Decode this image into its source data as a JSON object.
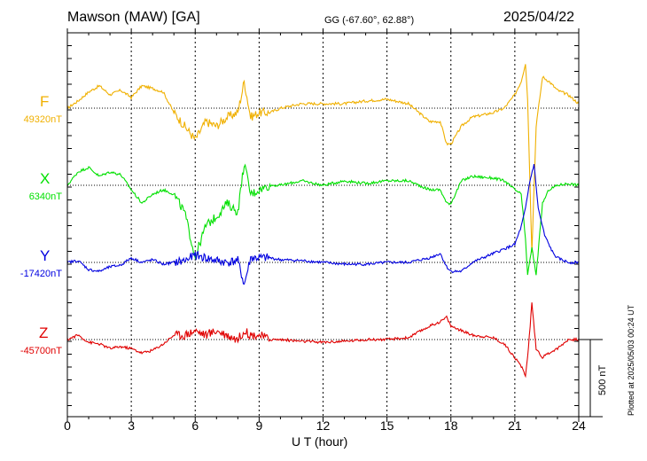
{
  "header": {
    "station": "Mawson (MAW)  [GA]",
    "coords": "GG (-67.60°,  62.88°)",
    "date": "2025/04/22"
  },
  "side_note": "Plotted at 2025/05/03 00:24 UT",
  "chart_data": {
    "type": "line",
    "title": "Mawson (MAW)  [GA]",
    "xlabel": "U T (hour)",
    "xlim": [
      0,
      24
    ],
    "xticks": [
      "0",
      "3",
      "6",
      "9",
      "12",
      "15",
      "18",
      "21",
      "24"
    ],
    "grid": true,
    "scale_bar": {
      "label": "500 nT",
      "value": 500
    },
    "series": [
      {
        "name": "F",
        "baseline_label": "49320nT",
        "baseline": 49320,
        "color": "#f0b000",
        "t": [
          0,
          0.5,
          1,
          1.5,
          2,
          2.5,
          3,
          3.5,
          4,
          4.5,
          5,
          5.5,
          6,
          6.5,
          7,
          7.5,
          8,
          8.3,
          8.6,
          9,
          9.5,
          10,
          11,
          12,
          13,
          14,
          15,
          16,
          16.5,
          17,
          17.5,
          17.8,
          18,
          18.5,
          19,
          20,
          20.5,
          21,
          21.3,
          21.5,
          21.6,
          21.8,
          22,
          22.3,
          22.6,
          23,
          23.5,
          24
        ],
        "v": [
          0,
          8,
          18,
          25,
          15,
          20,
          12,
          25,
          22,
          18,
          -5,
          -20,
          -35,
          -15,
          -20,
          -10,
          -5,
          30,
          -10,
          -5,
          -5,
          0,
          5,
          5,
          5,
          8,
          10,
          5,
          -5,
          -15,
          -15,
          -40,
          -40,
          -20,
          -10,
          -5,
          0,
          15,
          30,
          50,
          10,
          -160,
          -20,
          35,
          30,
          20,
          15,
          5
        ]
      },
      {
        "name": "X",
        "baseline_label": "6340nT",
        "baseline": 6340,
        "color": "#00e000",
        "t": [
          0,
          0.5,
          1,
          1.5,
          2,
          2.5,
          3,
          3.5,
          4,
          4.5,
          5,
          5.5,
          6,
          6.5,
          7,
          7.5,
          8,
          8.3,
          8.6,
          9,
          9.5,
          10,
          11,
          12,
          13,
          14,
          15,
          16,
          17,
          17.5,
          17.8,
          18,
          18.5,
          19,
          20,
          20.5,
          21,
          21.3,
          21.5,
          21.6,
          21.8,
          22,
          22.3,
          22.6,
          23,
          23.5,
          24
        ],
        "v": [
          0,
          15,
          20,
          10,
          15,
          12,
          -5,
          -20,
          -10,
          -5,
          -10,
          -30,
          -80,
          -45,
          -35,
          -20,
          -30,
          25,
          -10,
          -5,
          0,
          0,
          5,
          0,
          5,
          2,
          5,
          5,
          -5,
          -5,
          -20,
          -20,
          5,
          10,
          8,
          5,
          -5,
          -10,
          -60,
          -100,
          -70,
          -100,
          -20,
          -5,
          0,
          2,
          0
        ]
      },
      {
        "name": "Y",
        "baseline_label": "-17420nT",
        "baseline": -17420,
        "color": "#0000e0",
        "t": [
          0,
          0.5,
          1,
          1.5,
          2,
          2.5,
          3,
          3.5,
          4,
          4.5,
          5,
          5.5,
          6,
          6.5,
          7,
          7.5,
          8,
          8.3,
          8.6,
          9,
          9.5,
          10,
          11,
          12,
          13,
          14,
          15,
          16,
          17,
          17.5,
          17.8,
          18,
          18.5,
          19,
          20,
          20.5,
          21,
          21.3,
          21.5,
          21.7,
          21.9,
          22.1,
          22.4,
          22.8,
          23,
          23.5,
          24
        ],
        "v": [
          0,
          2,
          -8,
          -10,
          -5,
          -3,
          5,
          0,
          3,
          -2,
          0,
          2,
          8,
          5,
          2,
          0,
          2,
          -25,
          5,
          5,
          5,
          3,
          2,
          0,
          -2,
          -2,
          0,
          0,
          5,
          10,
          -5,
          -10,
          -10,
          0,
          10,
          15,
          20,
          40,
          60,
          90,
          110,
          60,
          30,
          10,
          5,
          0,
          0
        ]
      },
      {
        "name": "Z",
        "baseline_label": "-45700nT",
        "baseline": -45700,
        "color": "#e00000",
        "t": [
          0,
          0.5,
          1,
          1.5,
          2,
          2.5,
          3,
          3.5,
          4,
          4.5,
          5,
          5.5,
          6,
          6.5,
          7,
          7.5,
          8,
          8.3,
          8.6,
          9,
          9.5,
          10,
          11,
          12,
          13,
          14,
          15,
          16,
          17,
          17.5,
          17.8,
          18,
          18.5,
          19,
          20,
          20.5,
          21,
          21.3,
          21.5,
          21.6,
          21.8,
          22,
          22.3,
          22.6,
          23,
          23.5,
          24
        ],
        "v": [
          0,
          5,
          -3,
          -5,
          -10,
          -8,
          -10,
          -15,
          -12,
          -5,
          5,
          5,
          10,
          5,
          10,
          5,
          0,
          10,
          5,
          5,
          0,
          0,
          -2,
          -3,
          -2,
          0,
          0,
          2,
          15,
          20,
          25,
          15,
          10,
          5,
          2,
          -5,
          -20,
          -30,
          -40,
          -20,
          40,
          -10,
          -20,
          -15,
          -10,
          0,
          0
        ]
      }
    ]
  }
}
